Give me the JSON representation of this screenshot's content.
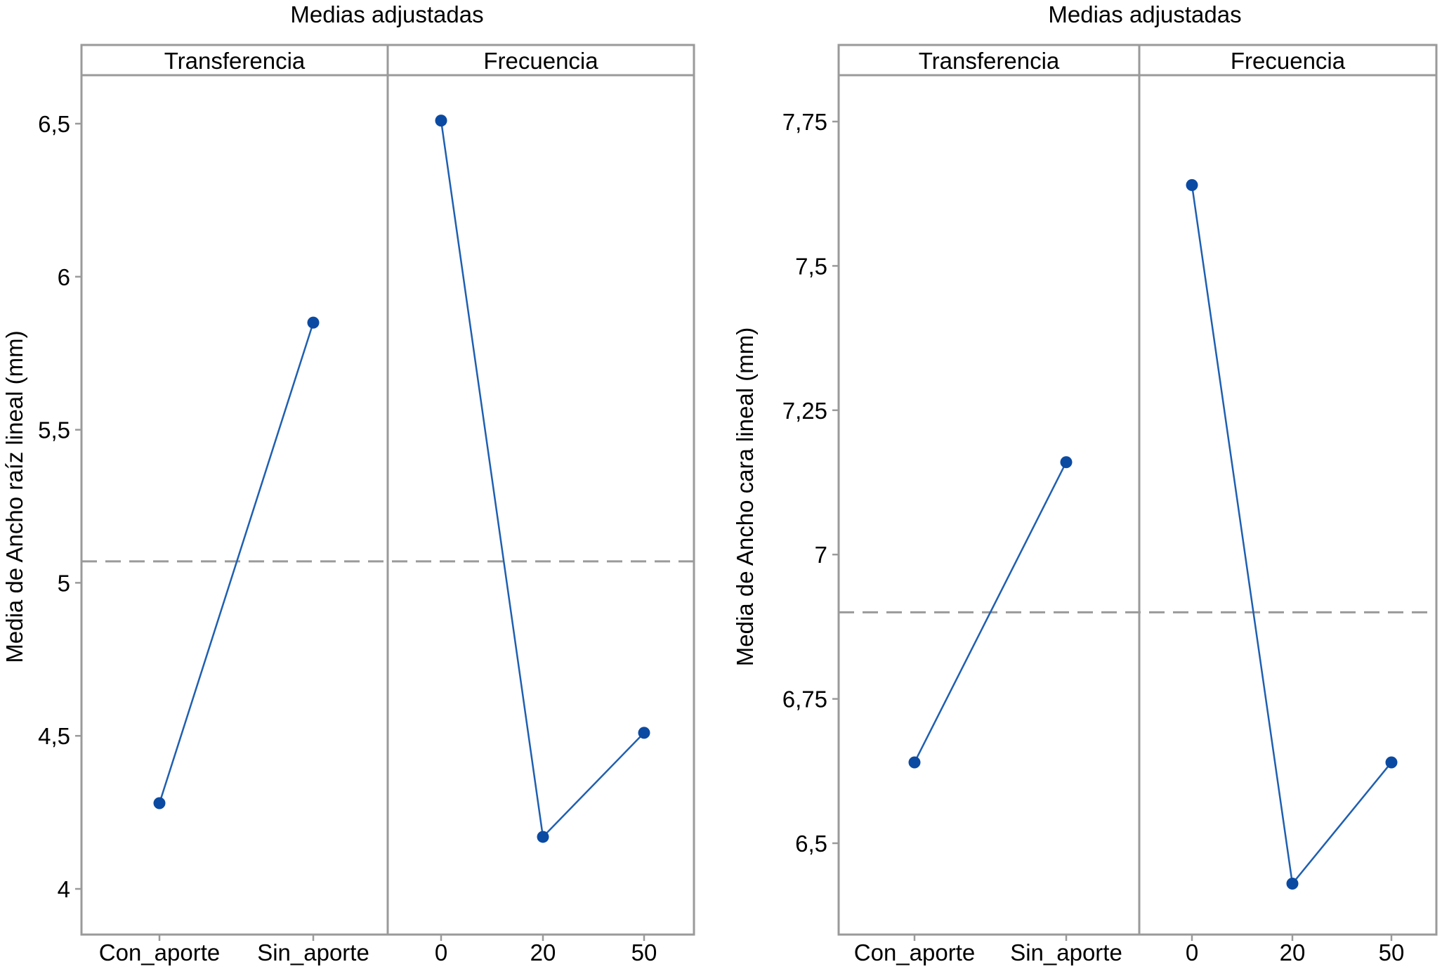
{
  "chart_data": [
    {
      "type": "line",
      "title": "Medias adjustadas",
      "ylabel": "Media de Ancho raíz lineal (mm)",
      "ylim": [
        3.85,
        6.66
      ],
      "yticks": [
        4,
        4.5,
        5,
        5.5,
        6,
        6.5
      ],
      "ytick_labels": [
        "4",
        "4,5",
        "5",
        "5,5",
        "6",
        "6,5"
      ],
      "reference_mean": 5.07,
      "panels": [
        {
          "header": "Transferencia",
          "x_labels": [
            "Con_aporte",
            "Sin_aporte"
          ],
          "values": [
            4.28,
            5.85
          ]
        },
        {
          "header": "Frecuencia",
          "x_labels": [
            "0",
            "20",
            "50"
          ],
          "values": [
            6.51,
            4.17,
            4.51
          ]
        }
      ]
    },
    {
      "type": "line",
      "title": "Medias adjustadas",
      "ylabel": "Media de Ancho cara lineal (mm)",
      "ylim": [
        6.35,
        7.83
      ],
      "yticks": [
        6.5,
        6.75,
        7,
        7.25,
        7.5,
        7.75
      ],
      "ytick_labels": [
        "6,5",
        "6,75",
        "7",
        "7,25",
        "7,5",
        "7,75"
      ],
      "reference_mean": 6.9,
      "panels": [
        {
          "header": "Transferencia",
          "x_labels": [
            "Con_aporte",
            "Sin_aporte"
          ],
          "values": [
            6.64,
            7.16
          ]
        },
        {
          "header": "Frecuencia",
          "x_labels": [
            "0",
            "20",
            "50"
          ],
          "values": [
            7.64,
            6.43,
            6.64
          ]
        }
      ]
    }
  ],
  "colors": {
    "series": "#1f5fb0",
    "marker": "#0b4aa2",
    "frame": "#9a9a9a",
    "reference_line": "#9a9a9a"
  }
}
